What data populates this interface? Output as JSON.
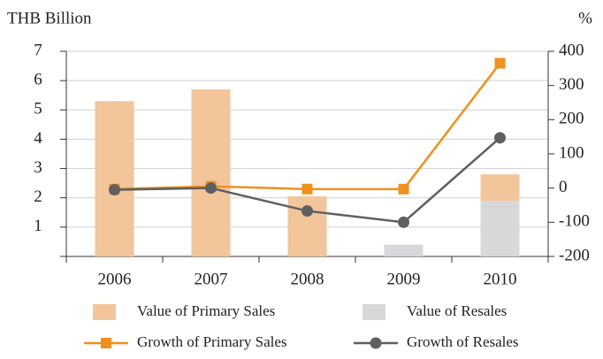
{
  "chart_data": {
    "type": "bar",
    "y_label": "THB Billion",
    "y2_label": "%",
    "categories": [
      "2006",
      "2007",
      "2008",
      "2009",
      "2010"
    ],
    "series": [
      {
        "name": "Value of Primary Sales",
        "type": "bar",
        "axis": "y",
        "color": "#f2c59b",
        "values": [
          5.3,
          5.7,
          2.05,
          0,
          2.8
        ]
      },
      {
        "name": "Value of Resales",
        "type": "bar",
        "axis": "y",
        "color": "#d8d8db",
        "values": [
          0,
          0,
          0,
          0.4,
          1.9
        ]
      },
      {
        "name": "Growth of Primary Sales",
        "type": "line",
        "axis": "y2",
        "color": "#f0901e",
        "marker": "square",
        "values": [
          -3,
          5,
          -3,
          -3,
          365
        ]
      },
      {
        "name": "Growth of Resales",
        "type": "line",
        "axis": "y2",
        "color": "#5f5f61",
        "marker": "circle",
        "values": [
          -5,
          0,
          -67,
          -100,
          147
        ]
      }
    ],
    "ylim": [
      0,
      7
    ],
    "yticks": [
      1,
      2,
      3,
      4,
      5,
      6,
      7
    ],
    "y2lim": [
      -200,
      400
    ],
    "y2ticks": [
      400,
      300,
      200,
      100,
      0,
      -100,
      -200
    ],
    "grid": true
  }
}
